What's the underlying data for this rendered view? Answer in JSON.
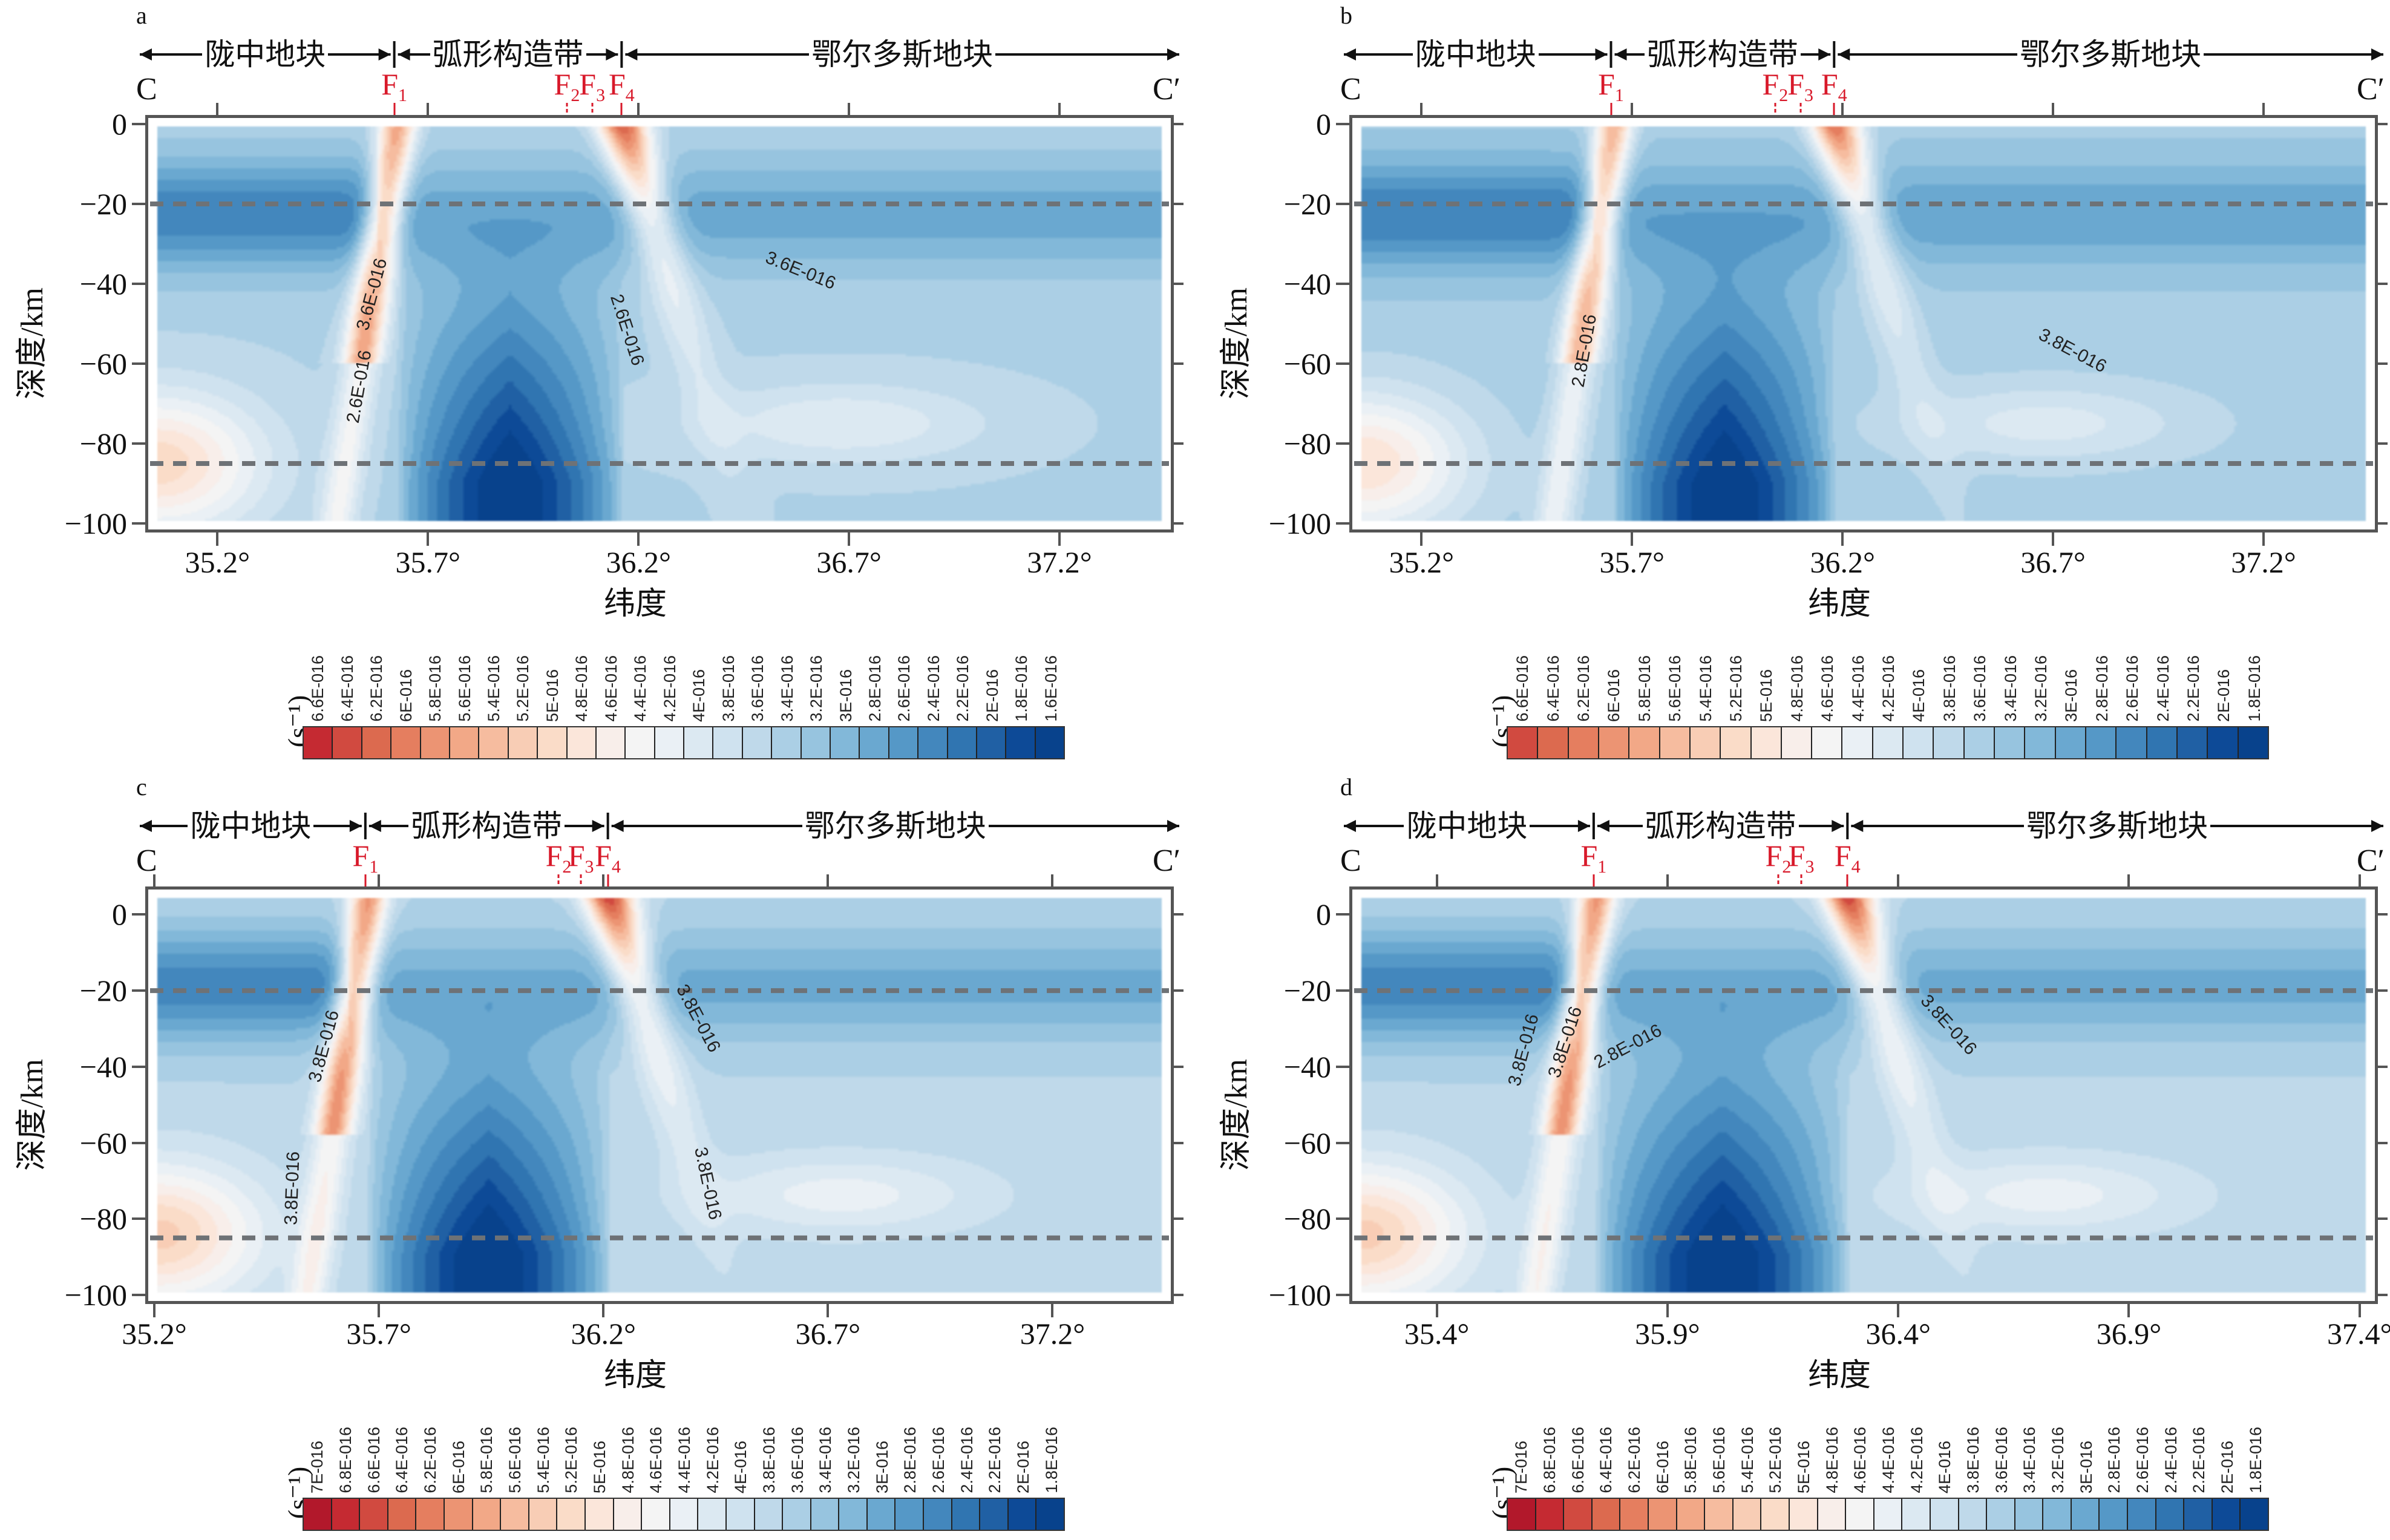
{
  "figure": {
    "ylabel": "深度/km",
    "xlabel": "纬度",
    "cbar_unit": "(s⁻¹)",
    "profile_start": "C",
    "profile_end": "C′",
    "regions": [
      "陇中地块",
      "弧形构造带",
      "鄂尔多斯地块"
    ],
    "faults": [
      "F1",
      "F2",
      "F3",
      "F4"
    ],
    "reference_depths_km": [
      -20,
      -85
    ]
  },
  "chart_data": [
    {
      "type": "heatmap",
      "panel": "a",
      "title": "a",
      "xlabel": "纬度",
      "ylabel": "深度/km",
      "xlim": [
        35.05,
        37.45
      ],
      "ylim": [
        -100,
        0
      ],
      "xticks": [
        "35.2°",
        "35.7°",
        "36.2°",
        "36.7°",
        "37.2°"
      ],
      "xtick_values": [
        35.2,
        35.7,
        36.2,
        36.7,
        37.2
      ],
      "yticks": [
        0,
        -20,
        -40,
        -60,
        -80,
        -100
      ],
      "ytick_labels": [
        "0",
        "−20",
        "−40",
        "−60",
        "−80",
        "−100"
      ],
      "fault_positions_deg": {
        "F1": 35.62,
        "F2": 36.03,
        "F3": 36.09,
        "F4": 36.16
      },
      "region_bounds_deg": [
        35.05,
        35.62,
        36.16,
        37.45
      ],
      "colorbar_ticks": [
        "6.6E-016",
        "6.4E-016",
        "6.2E-016",
        "6E-016",
        "5.8E-016",
        "5.6E-016",
        "5.4E-016",
        "5.2E-016",
        "5E-016",
        "4.8E-016",
        "4.6E-016",
        "4.4E-016",
        "4.2E-016",
        "4E-016",
        "3.8E-016",
        "3.6E-016",
        "3.4E-016",
        "3.2E-016",
        "3E-016",
        "2.8E-016",
        "2.6E-016",
        "2.4E-016",
        "2.2E-016",
        "2E-016",
        "1.8E-016",
        "1.6E-016"
      ],
      "contour_labels": [
        {
          "text": "3.6E-016",
          "lat": 35.58,
          "depth": -43,
          "angle": -75
        },
        {
          "text": "2.6E-016",
          "lat": 35.55,
          "depth": -66,
          "angle": -80
        },
        {
          "text": "2.6E-016",
          "lat": 36.16,
          "depth": -52,
          "angle": 72
        },
        {
          "text": "3.6E-016",
          "lat": 36.58,
          "depth": -38,
          "angle": 22
        }
      ]
    },
    {
      "type": "heatmap",
      "panel": "b",
      "title": "b",
      "xlabel": "纬度",
      "ylabel": "深度/km",
      "xlim": [
        35.05,
        37.45
      ],
      "ylim": [
        -100,
        0
      ],
      "xticks": [
        "35.2°",
        "35.7°",
        "36.2°",
        "36.7°",
        "37.2°"
      ],
      "xtick_values": [
        35.2,
        35.7,
        36.2,
        36.7,
        37.2
      ],
      "yticks": [
        0,
        -20,
        -40,
        -60,
        -80,
        -100
      ],
      "ytick_labels": [
        "0",
        "−20",
        "−40",
        "−60",
        "−80",
        "−100"
      ],
      "fault_positions_deg": {
        "F1": 35.65,
        "F2": 36.04,
        "F3": 36.1,
        "F4": 36.18
      },
      "region_bounds_deg": [
        35.05,
        35.65,
        36.18,
        37.45
      ],
      "colorbar_ticks": [
        "6.6E-016",
        "6.4E-016",
        "6.2E-016",
        "6E-016",
        "5.8E-016",
        "5.6E-016",
        "5.4E-016",
        "5.2E-016",
        "5E-016",
        "4.8E-016",
        "4.6E-016",
        "4.4E-016",
        "4.2E-016",
        "4E-016",
        "3.8E-016",
        "3.6E-016",
        "3.4E-016",
        "3.2E-016",
        "3E-016",
        "2.8E-016",
        "2.6E-016",
        "2.4E-016",
        "2.2E-016",
        "2E-016",
        "1.8E-016"
      ],
      "contour_labels": [
        {
          "text": "2.8E-016",
          "lat": 35.6,
          "depth": -57,
          "angle": -80
        },
        {
          "text": "3.8E-016",
          "lat": 36.74,
          "depth": -58,
          "angle": 28
        }
      ]
    },
    {
      "type": "heatmap",
      "panel": "c",
      "title": "c",
      "xlabel": "纬度",
      "ylabel": "深度/km",
      "xlim": [
        35.2,
        37.45
      ],
      "ylim": [
        -100,
        5
      ],
      "xticks": [
        "35.2°",
        "35.7°",
        "36.2°",
        "36.7°",
        "37.2°"
      ],
      "xtick_values": [
        35.2,
        35.7,
        36.2,
        36.7,
        37.2
      ],
      "yticks": [
        0,
        -20,
        -40,
        -60,
        -80,
        -100
      ],
      "ytick_labels": [
        "0",
        "−20",
        "−40",
        "−60",
        "−80",
        "−100"
      ],
      "fault_positions_deg": {
        "F1": 35.67,
        "F2": 36.1,
        "F3": 36.15,
        "F4": 36.21
      },
      "region_bounds_deg": [
        35.2,
        35.67,
        36.21,
        37.45
      ],
      "colorbar_ticks": [
        "7E-016",
        "6.8E-016",
        "6.6E-016",
        "6.4E-016",
        "6.2E-016",
        "6E-016",
        "5.8E-016",
        "5.6E-016",
        "5.4E-016",
        "5.2E-016",
        "5E-016",
        "4.8E-016",
        "4.6E-016",
        "4.4E-016",
        "4.2E-016",
        "4E-016",
        "3.8E-016",
        "3.6E-016",
        "3.4E-016",
        "3.2E-016",
        "3E-016",
        "2.8E-016",
        "2.6E-016",
        "2.4E-016",
        "2.2E-016",
        "2E-016",
        "1.8E-016"
      ],
      "contour_labels": [
        {
          "text": "3.8E-016",
          "lat": 35.59,
          "depth": -35,
          "angle": -75
        },
        {
          "text": "3.8E-016",
          "lat": 35.52,
          "depth": -72,
          "angle": -88
        },
        {
          "text": "3.8E-016",
          "lat": 36.4,
          "depth": -28,
          "angle": 62
        },
        {
          "text": "3.8E-016",
          "lat": 36.42,
          "depth": -71,
          "angle": 78
        }
      ]
    },
    {
      "type": "heatmap",
      "panel": "d",
      "title": "d",
      "xlabel": "纬度",
      "ylabel": "深度/km",
      "xlim": [
        35.23,
        37.42
      ],
      "ylim": [
        -100,
        5
      ],
      "xticks": [
        "35.4°",
        "35.9°",
        "36.4°",
        "36.9°",
        "37.4°"
      ],
      "xtick_values": [
        35.4,
        35.9,
        36.4,
        36.9,
        37.4
      ],
      "yticks": [
        0,
        -20,
        -40,
        -60,
        -80,
        -100
      ],
      "ytick_labels": [
        "0",
        "−20",
        "−40",
        "−60",
        "−80",
        "−100"
      ],
      "fault_positions_deg": {
        "F1": 35.74,
        "F2": 36.14,
        "F3": 36.19,
        "F4": 36.29
      },
      "region_bounds_deg": [
        35.23,
        35.74,
        36.29,
        37.42
      ],
      "colorbar_ticks": [
        "7E-016",
        "6.8E-016",
        "6.6E-016",
        "6.4E-016",
        "6.2E-016",
        "6E-016",
        "5.8E-016",
        "5.6E-016",
        "5.4E-016",
        "5.2E-016",
        "5E-016",
        "4.8E-016",
        "4.6E-016",
        "4.4E-016",
        "4.2E-016",
        "4E-016",
        "3.8E-016",
        "3.6E-016",
        "3.4E-016",
        "3.2E-016",
        "3E-016",
        "2.8E-016",
        "2.6E-016",
        "2.4E-016",
        "2.2E-016",
        "2E-016",
        "1.8E-016"
      ],
      "contour_labels": [
        {
          "text": "3.8E-016",
          "lat": 35.6,
          "depth": -36,
          "angle": -75
        },
        {
          "text": "3.8E-016",
          "lat": 35.69,
          "depth": -34,
          "angle": -72
        },
        {
          "text": "2.8E-016",
          "lat": 35.82,
          "depth": -36,
          "angle": -28
        },
        {
          "text": "3.8E-016",
          "lat": 36.5,
          "depth": -30,
          "angle": 48
        }
      ]
    }
  ]
}
